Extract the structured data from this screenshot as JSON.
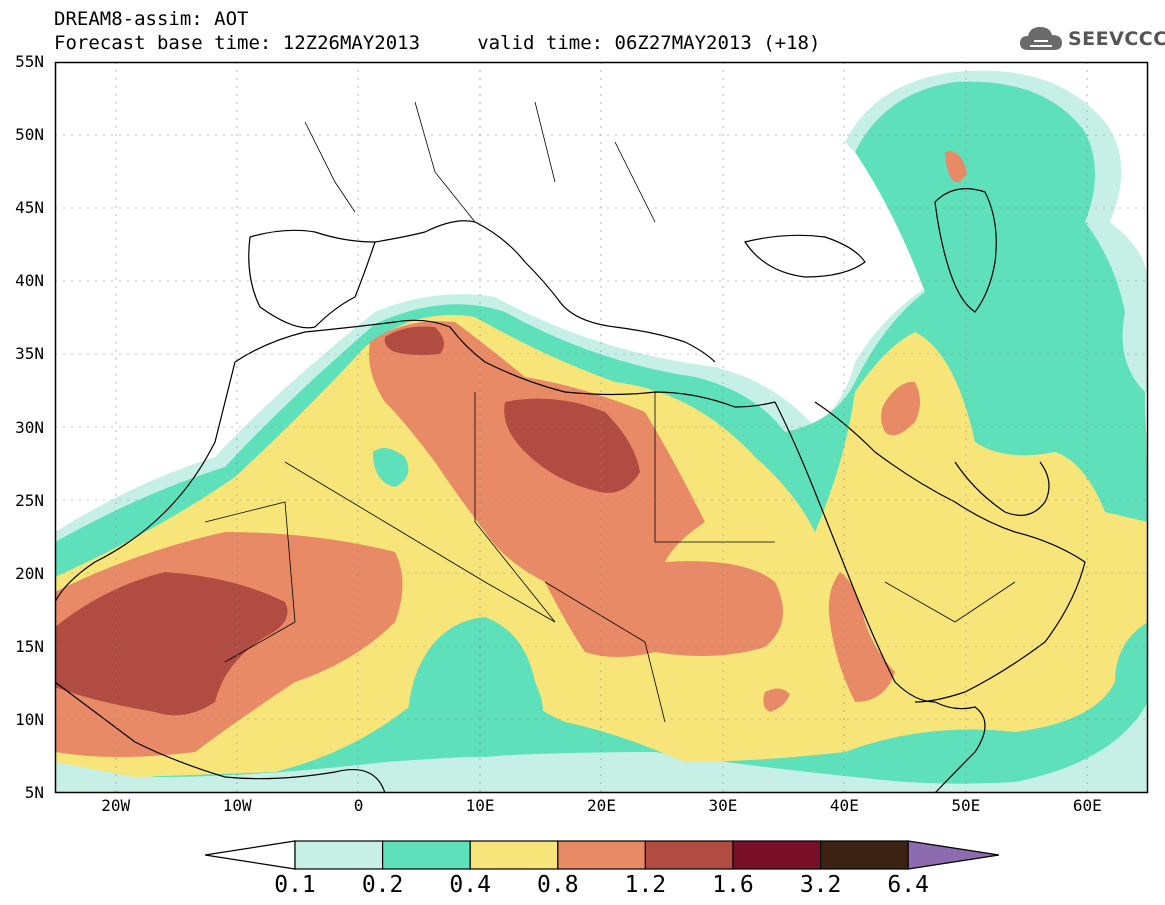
{
  "title": {
    "line1": "DREAM8-assim: AOT",
    "line2": "Forecast base time: 12Z26MAY2013     valid time: 06Z27MAY2013 (+18)"
  },
  "logo": {
    "text": "SEEVCCC",
    "icon": "cloud-icon"
  },
  "map": {
    "lon_range": [
      -25,
      65
    ],
    "lat_range": [
      5,
      55
    ],
    "lat_ticks": [
      "55N",
      "50N",
      "45N",
      "40N",
      "35N",
      "30N",
      "25N",
      "20N",
      "15N",
      "10N",
      "5N"
    ],
    "lon_ticks": [
      "20W",
      "10W",
      "0",
      "10E",
      "20E",
      "30E",
      "40E",
      "50E",
      "60E"
    ]
  },
  "colorbar": {
    "labels": [
      "0.1",
      "0.2",
      "0.4",
      "0.8",
      "1.2",
      "1.6",
      "3.2",
      "6.4"
    ],
    "colors": [
      "#ffffff",
      "#c6f0e6",
      "#5ee0bb",
      "#f7e57a",
      "#e98a66",
      "#b14c43",
      "#7a0f2a",
      "#3b2212",
      "#8c6bb1"
    ]
  }
}
